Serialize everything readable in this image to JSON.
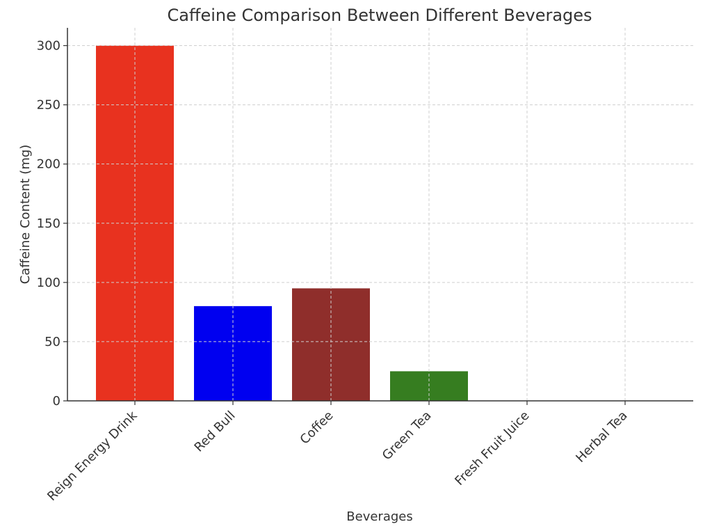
{
  "chart_data": {
    "type": "bar",
    "title": "Caffeine Comparison Between Different Beverages",
    "xlabel": "Beverages",
    "ylabel": "Caffeine Content (mg)",
    "categories": [
      "Reign Energy Drink",
      "Red Bull",
      "Coffee",
      "Green Tea",
      "Fresh Fruit Juice",
      "Herbal Tea"
    ],
    "values": [
      300,
      80,
      95,
      25,
      0,
      0
    ],
    "colors": [
      "#e8321f",
      "#0000f0",
      "#8f2e2b",
      "#367d20",
      "#ff8c1a",
      "#7fbf3f"
    ],
    "ylim": [
      0,
      315
    ],
    "yticks": [
      0,
      50,
      100,
      150,
      200,
      250,
      300
    ],
    "grid": true
  }
}
